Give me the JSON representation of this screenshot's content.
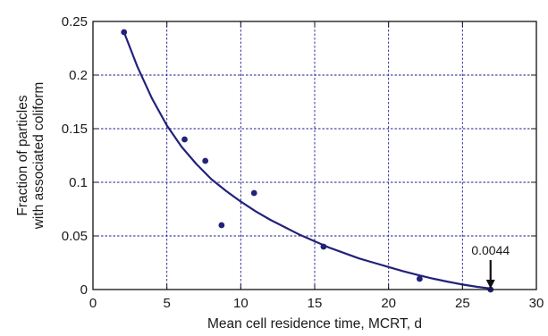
{
  "chart_data": {
    "type": "scatter",
    "title": "",
    "xlabel": "Mean cell residence time, MCRT, d",
    "ylabel_lines": [
      "Fraction of particles",
      "with associated coliform"
    ],
    "xlim": [
      0,
      30
    ],
    "ylim": [
      0,
      0.25
    ],
    "x_ticks": [
      "0",
      "5",
      "10",
      "15",
      "20",
      "25",
      "30"
    ],
    "y_ticks": [
      "0",
      "0.05",
      "0.1",
      "0.15",
      "0.2",
      "0.25"
    ],
    "grid": true,
    "series": [
      {
        "type": "scatter",
        "x": [
          2.1,
          6.2,
          7.6,
          8.7,
          10.9,
          15.6,
          22.1,
          26.9
        ],
        "y": [
          0.24,
          0.14,
          0.12,
          0.06,
          0.09,
          0.04,
          0.01,
          0.0
        ]
      },
      {
        "type": "line",
        "x": [
          2.1,
          3,
          4,
          5,
          6,
          7,
          8,
          9,
          10,
          11,
          12,
          13,
          14,
          15,
          16,
          17,
          18,
          19,
          20,
          21,
          22,
          23,
          24,
          25,
          26,
          27
        ],
        "y": [
          0.24,
          0.208,
          0.178,
          0.153,
          0.133,
          0.117,
          0.103,
          0.092,
          0.082,
          0.073,
          0.065,
          0.058,
          0.051,
          0.045,
          0.039,
          0.034,
          0.029,
          0.025,
          0.021,
          0.017,
          0.0135,
          0.0102,
          0.0073,
          0.0047,
          0.0025,
          0.0008
        ]
      }
    ],
    "annotation": {
      "text": "0.0044",
      "x": 26.9,
      "y": 0.0
    },
    "colors": {
      "series": "#22227a",
      "grid": "#1d1d8c",
      "axis": "#111111"
    }
  }
}
